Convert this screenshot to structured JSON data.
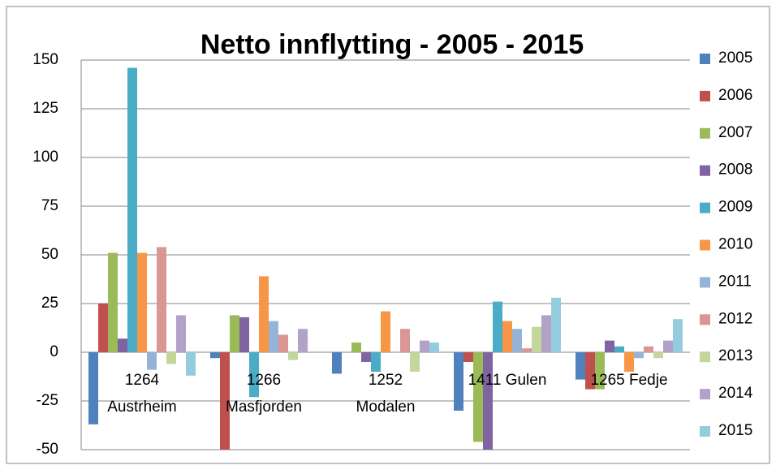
{
  "chart_data": {
    "type": "bar",
    "title": "Netto innflytting - 2005 - 2015",
    "categories": [
      "1264 Austrheim",
      "1266 Masfjorden",
      "1252 Modalen",
      "1411 Gulen",
      "1265 Fedje"
    ],
    "series": [
      {
        "name": "2005",
        "color": "#4F81BD",
        "values": [
          -37,
          -3,
          -11,
          -30,
          -14
        ]
      },
      {
        "name": "2006",
        "color": "#C0504D",
        "values": [
          25,
          -50,
          0,
          -5,
          -19
        ]
      },
      {
        "name": "2007",
        "color": "#9BBB59",
        "values": [
          51,
          19,
          5,
          -46,
          -19
        ]
      },
      {
        "name": "2008",
        "color": "#8064A2",
        "values": [
          7,
          18,
          -5,
          -50,
          6
        ]
      },
      {
        "name": "2009",
        "color": "#4BACC6",
        "values": [
          146,
          -23,
          -10,
          26,
          3
        ]
      },
      {
        "name": "2010",
        "color": "#F79646",
        "values": [
          51,
          39,
          21,
          16,
          -10
        ]
      },
      {
        "name": "2011",
        "color": "#95B3D7",
        "values": [
          -9,
          16,
          0,
          12,
          -3
        ]
      },
      {
        "name": "2012",
        "color": "#D99694",
        "values": [
          54,
          9,
          12,
          2,
          3
        ]
      },
      {
        "name": "2013",
        "color": "#C3D69B",
        "values": [
          -6,
          -4,
          -10,
          13,
          -3
        ]
      },
      {
        "name": "2014",
        "color": "#B3A2C7",
        "values": [
          19,
          12,
          6,
          19,
          6
        ]
      },
      {
        "name": "2015",
        "color": "#93CDDD",
        "values": [
          -12,
          0,
          5,
          28,
          17
        ]
      }
    ],
    "ylim": [
      -50,
      150
    ],
    "yticks": [
      -50,
      -25,
      0,
      25,
      50,
      75,
      100,
      125,
      150
    ],
    "grid": true,
    "legend": "right"
  }
}
